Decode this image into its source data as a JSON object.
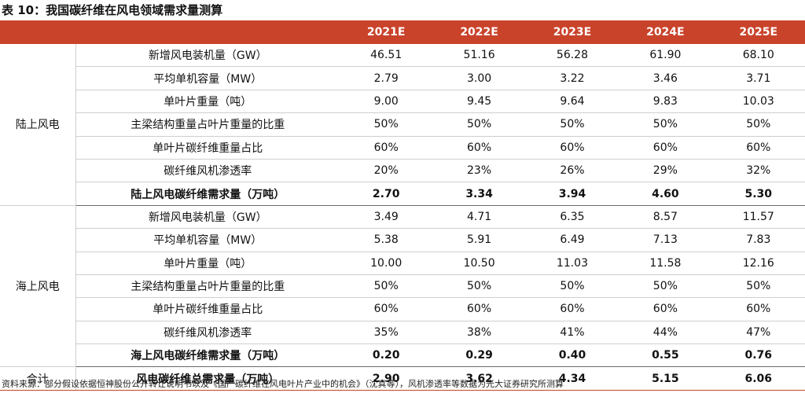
{
  "title": "表 10：我国碳纤维在风电领域需求量测算",
  "header": [
    "",
    "",
    "2021E",
    "2022E",
    "2023E",
    "2024E",
    "2025E"
  ],
  "groups": [
    {
      "name": "陆上风电",
      "rows": [
        {
          "label": "新增风电装机量（GW）",
          "values": [
            "46.51",
            "51.16",
            "56.28",
            "61.90",
            "68.10"
          ]
        },
        {
          "label": "平均单机容量（MW）",
          "values": [
            "2.79",
            "3.00",
            "3.22",
            "3.46",
            "3.71"
          ]
        },
        {
          "label": "单叶片重量（吨）",
          "values": [
            "9.00",
            "9.45",
            "9.64",
            "9.83",
            "10.03"
          ]
        },
        {
          "label": "主梁结构重量占叶片重量的比重",
          "values": [
            "50%",
            "50%",
            "50%",
            "50%",
            "50%"
          ]
        },
        {
          "label": "单叶片碳纤维重量占比",
          "values": [
            "60%",
            "60%",
            "60%",
            "60%",
            "60%"
          ]
        },
        {
          "label": "碳纤维风机渗透率",
          "values": [
            "20%",
            "23%",
            "26%",
            "29%",
            "32%"
          ]
        },
        {
          "label": "陆上风电碳纤维需求量（万吨）",
          "values": [
            "2.70",
            "3.34",
            "3.94",
            "4.60",
            "5.30"
          ],
          "bold": true
        }
      ]
    },
    {
      "name": "海上风电",
      "rows": [
        {
          "label": "新增风电装机量（GW）",
          "values": [
            "3.49",
            "4.71",
            "6.35",
            "8.57",
            "11.57"
          ]
        },
        {
          "label": "平均单机容量（MW）",
          "values": [
            "5.38",
            "5.91",
            "6.49",
            "7.13",
            "7.83"
          ]
        },
        {
          "label": "单叶片重量（吨）",
          "values": [
            "10.00",
            "10.50",
            "11.03",
            "11.58",
            "12.16"
          ]
        },
        {
          "label": "主梁结构重量占叶片重量的比重",
          "values": [
            "50%",
            "50%",
            "50%",
            "50%",
            "50%"
          ]
        },
        {
          "label": "单叶片碳纤维重量占比",
          "values": [
            "60%",
            "60%",
            "60%",
            "60%",
            "60%"
          ]
        },
        {
          "label": "碳纤维风机渗透率",
          "values": [
            "35%",
            "38%",
            "41%",
            "44%",
            "47%"
          ]
        },
        {
          "label": "海上风电碳纤维需求量（万吨）",
          "values": [
            "0.20",
            "0.29",
            "0.40",
            "0.55",
            "0.76"
          ],
          "bold": true
        }
      ]
    }
  ],
  "total": {
    "name": "合计",
    "label": "风电碳纤维总需求量（万吨）",
    "values": [
      "2.90",
      "3.62",
      "4.34",
      "5.15",
      "6.06"
    ]
  },
  "source": "资料来源：部分假设依据恒神股份公开转让说明书以及《国产碳纤维在风电叶片产业中的机会》（沈真等），风机渗透率等数据为光大证券研究所测算"
}
